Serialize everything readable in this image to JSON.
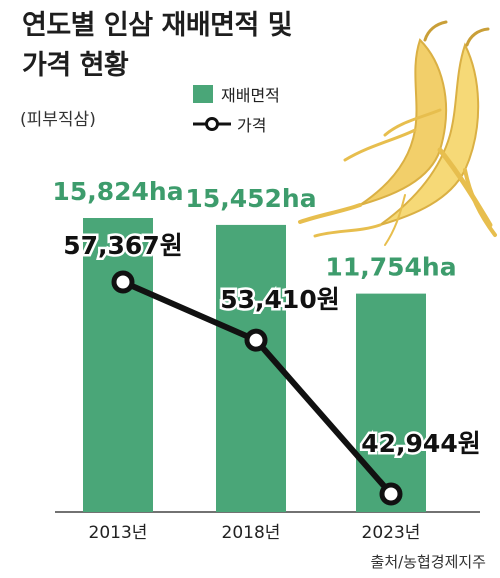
{
  "chart_data": {
    "type": "bar",
    "title_lines": [
      "연도별 인삼 재배면적 및",
      "가격 현황"
    ],
    "subtitle": "(피부직삼)",
    "categories": [
      "2013년",
      "2018년",
      "2023년"
    ],
    "series": [
      {
        "name": "재배면적",
        "type": "bar",
        "values": [
          15824,
          15452,
          11754
        ],
        "labels": [
          "15,824ha",
          "15,452ha",
          "11,754ha"
        ],
        "color": "#4aa678"
      },
      {
        "name": "가격",
        "type": "line",
        "values": [
          57367,
          53410,
          42944
        ],
        "labels": [
          "57,367원",
          "53,410원",
          "42,944원"
        ],
        "color": "#111111"
      }
    ],
    "label_color": "#3d9c6c",
    "legend_position": "top-center",
    "grid": false,
    "source": "출처/농협경제지주"
  }
}
